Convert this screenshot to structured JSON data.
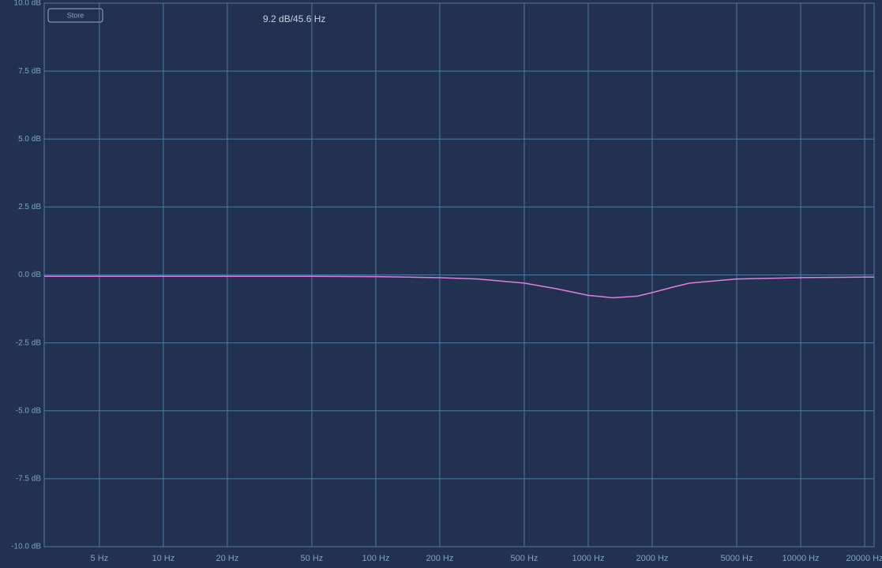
{
  "chart_data": {
    "type": "line",
    "annotation": "9.2 dB/45.6 Hz",
    "button": "Store",
    "xscale": "log",
    "grid": true,
    "xlim": [
      2.75,
      22160
    ],
    "ylim": [
      -10,
      10
    ],
    "xticks": [
      {
        "value": 5,
        "label": "5 Hz"
      },
      {
        "value": 10,
        "label": "10 Hz"
      },
      {
        "value": 20,
        "label": "20 Hz"
      },
      {
        "value": 50,
        "label": "50 Hz"
      },
      {
        "value": 100,
        "label": "100 Hz"
      },
      {
        "value": 200,
        "label": "200 Hz"
      },
      {
        "value": 500,
        "label": "500 Hz"
      },
      {
        "value": 1000,
        "label": "1000 Hz"
      },
      {
        "value": 2000,
        "label": "2000 Hz"
      },
      {
        "value": 5000,
        "label": "5000 Hz"
      },
      {
        "value": 10000,
        "label": "10000 Hz"
      },
      {
        "value": 20000,
        "label": "20000 Hz"
      }
    ],
    "yticks": [
      {
        "value": 10,
        "label": "10.0 dB"
      },
      {
        "value": 7.5,
        "label": "7.5 dB"
      },
      {
        "value": 5,
        "label": "5.0 dB"
      },
      {
        "value": 2.5,
        "label": "2.5 dB"
      },
      {
        "value": 0,
        "label": "0.0 dB"
      },
      {
        "value": -2.5,
        "label": "-2.5 dB"
      },
      {
        "value": -5,
        "label": "-5.0 dB"
      },
      {
        "value": -7.5,
        "label": "-7.5 dB"
      },
      {
        "value": -10,
        "label": "-10.0 dB"
      }
    ],
    "x": [
      2.75,
      5,
      10,
      20,
      50,
      100,
      200,
      300,
      500,
      700,
      1000,
      1300,
      1700,
      2000,
      2500,
      3000,
      5000,
      10000,
      20000,
      22160
    ],
    "values": [
      -0.05,
      -0.05,
      -0.05,
      -0.05,
      -0.05,
      -0.06,
      -0.1,
      -0.15,
      -0.3,
      -0.5,
      -0.75,
      -0.84,
      -0.78,
      -0.65,
      -0.45,
      -0.3,
      -0.15,
      -0.1,
      -0.08,
      -0.08
    ],
    "color": "#e07de0"
  }
}
